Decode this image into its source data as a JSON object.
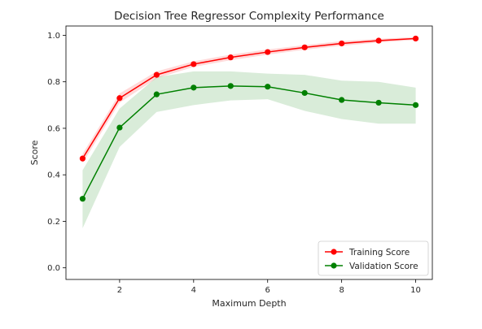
{
  "chart_data": {
    "type": "line",
    "title": "Decision Tree Regressor Complexity Performance",
    "xlabel": "Maximum Depth",
    "ylabel": "Score",
    "x": [
      1,
      2,
      3,
      4,
      5,
      6,
      7,
      8,
      9,
      10
    ],
    "xlim": [
      0.55,
      10.45
    ],
    "ylim": [
      -0.05,
      1.04
    ],
    "xticks": [
      2,
      4,
      6,
      8,
      10
    ],
    "yticks": [
      0.0,
      0.2,
      0.4,
      0.6,
      0.8,
      1.0
    ],
    "ytick_labels": [
      "0.0",
      "0.2",
      "0.4",
      "0.6",
      "0.8",
      "1.0"
    ],
    "grid": false,
    "legend_position": "lower-right",
    "series": [
      {
        "name": "Training Score",
        "color": "#ff0000",
        "marker": "circle",
        "values": [
          0.47,
          0.73,
          0.83,
          0.876,
          0.905,
          0.928,
          0.948,
          0.965,
          0.977,
          0.986
        ],
        "band_lower": [
          0.45,
          0.71,
          0.815,
          0.864,
          0.893,
          0.917,
          0.938,
          0.955,
          0.969,
          0.98
        ],
        "band_upper": [
          0.49,
          0.75,
          0.845,
          0.888,
          0.917,
          0.939,
          0.958,
          0.975,
          0.985,
          0.992
        ]
      },
      {
        "name": "Validation Score",
        "color": "#008000",
        "marker": "circle",
        "values": [
          0.297,
          0.603,
          0.746,
          0.775,
          0.782,
          0.779,
          0.752,
          0.722,
          0.71,
          0.7
        ],
        "band_lower": [
          0.17,
          0.52,
          0.67,
          0.7,
          0.72,
          0.725,
          0.675,
          0.64,
          0.62,
          0.62
        ],
        "band_upper": [
          0.42,
          0.685,
          0.82,
          0.845,
          0.845,
          0.835,
          0.83,
          0.805,
          0.8,
          0.775
        ]
      }
    ]
  }
}
